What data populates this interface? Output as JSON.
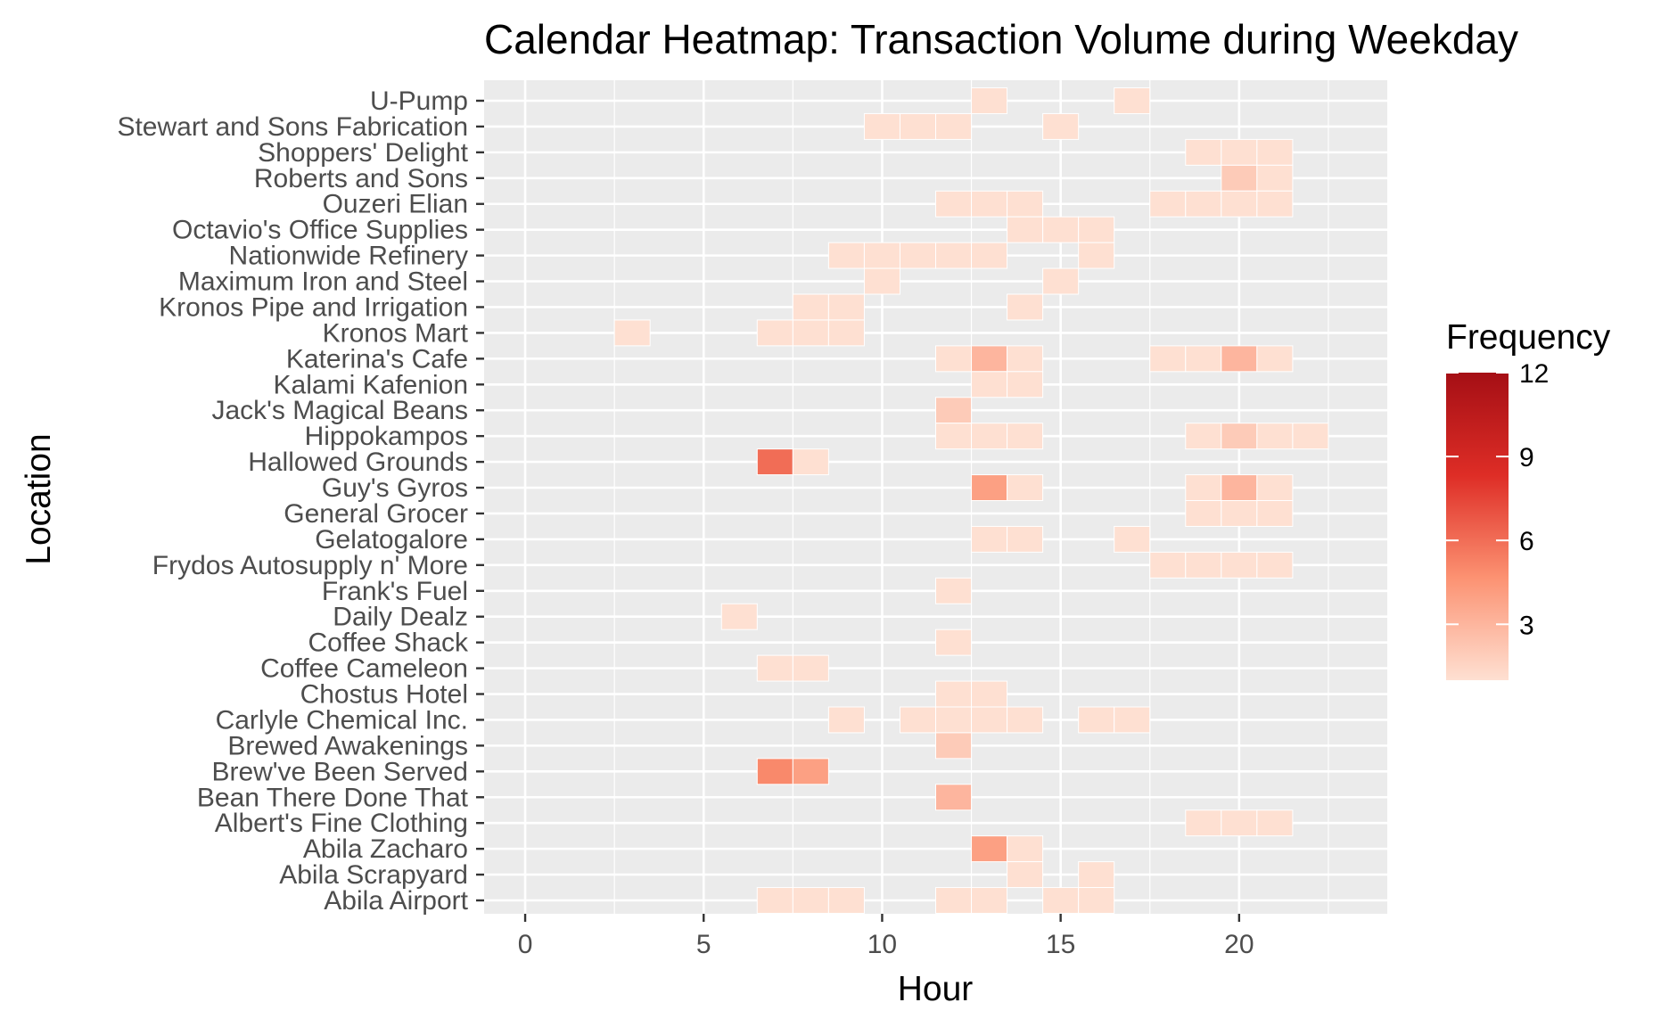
{
  "chart_data": {
    "type": "heatmap",
    "title": "Calendar Heatmap: Transaction Volume during Weekday",
    "xlabel": "Hour",
    "ylabel": "Location",
    "xlim": [
      -1.15,
      24.15
    ],
    "xticks": [
      0,
      5,
      10,
      15,
      20
    ],
    "grid": true,
    "legend": {
      "title": "Frequency",
      "position": "right",
      "range": [
        1,
        12
      ],
      "ticks": [
        3,
        6,
        9,
        12
      ],
      "colors": [
        "#fee0d2",
        "#fc9272",
        "#de2d26",
        "#a50f15"
      ]
    },
    "locations": [
      "Abila Airport",
      "Abila Scrapyard",
      "Abila Zacharo",
      "Albert's Fine Clothing",
      "Bean There Done That",
      "Brew've Been Served",
      "Brewed Awakenings",
      "Carlyle Chemical Inc.",
      "Chostus Hotel",
      "Coffee Cameleon",
      "Coffee Shack",
      "Daily Dealz",
      "Frank's Fuel",
      "Frydos Autosupply n' More",
      "Gelatogalore",
      "General Grocer",
      "Guy's Gyros",
      "Hallowed Grounds",
      "Hippokampos",
      "Jack's Magical Beans",
      "Kalami Kafenion",
      "Katerina's Cafe",
      "Kronos Mart",
      "Kronos Pipe and Irrigation",
      "Maximum Iron and Steel",
      "Nationwide Refinery",
      "Octavio's Office Supplies",
      "Ouzeri Elian",
      "Roberts and Sons",
      "Shoppers' Delight",
      "Stewart and Sons Fabrication",
      "U-Pump"
    ],
    "cells": [
      {
        "location": "U-Pump",
        "hour": 13,
        "value": 1
      },
      {
        "location": "U-Pump",
        "hour": 17,
        "value": 1
      },
      {
        "location": "Stewart and Sons Fabrication",
        "hour": 10,
        "value": 1
      },
      {
        "location": "Stewart and Sons Fabrication",
        "hour": 11,
        "value": 1
      },
      {
        "location": "Stewart and Sons Fabrication",
        "hour": 12,
        "value": 1
      },
      {
        "location": "Stewart and Sons Fabrication",
        "hour": 15,
        "value": 1
      },
      {
        "location": "Shoppers' Delight",
        "hour": 19,
        "value": 1
      },
      {
        "location": "Shoppers' Delight",
        "hour": 20,
        "value": 1
      },
      {
        "location": "Shoppers' Delight",
        "hour": 21,
        "value": 1
      },
      {
        "location": "Roberts and Sons",
        "hour": 20,
        "value": 2
      },
      {
        "location": "Roberts and Sons",
        "hour": 21,
        "value": 1
      },
      {
        "location": "Ouzeri Elian",
        "hour": 12,
        "value": 1
      },
      {
        "location": "Ouzeri Elian",
        "hour": 13,
        "value": 1
      },
      {
        "location": "Ouzeri Elian",
        "hour": 14,
        "value": 1
      },
      {
        "location": "Ouzeri Elian",
        "hour": 18,
        "value": 1
      },
      {
        "location": "Ouzeri Elian",
        "hour": 19,
        "value": 1
      },
      {
        "location": "Ouzeri Elian",
        "hour": 20,
        "value": 1
      },
      {
        "location": "Ouzeri Elian",
        "hour": 21,
        "value": 1
      },
      {
        "location": "Octavio's Office Supplies",
        "hour": 14,
        "value": 1
      },
      {
        "location": "Octavio's Office Supplies",
        "hour": 15,
        "value": 1
      },
      {
        "location": "Octavio's Office Supplies",
        "hour": 16,
        "value": 1
      },
      {
        "location": "Nationwide Refinery",
        "hour": 9,
        "value": 1
      },
      {
        "location": "Nationwide Refinery",
        "hour": 10,
        "value": 1
      },
      {
        "location": "Nationwide Refinery",
        "hour": 11,
        "value": 1
      },
      {
        "location": "Nationwide Refinery",
        "hour": 12,
        "value": 1
      },
      {
        "location": "Nationwide Refinery",
        "hour": 13,
        "value": 1
      },
      {
        "location": "Nationwide Refinery",
        "hour": 16,
        "value": 1
      },
      {
        "location": "Maximum Iron and Steel",
        "hour": 10,
        "value": 1
      },
      {
        "location": "Maximum Iron and Steel",
        "hour": 15,
        "value": 1
      },
      {
        "location": "Kronos Pipe and Irrigation",
        "hour": 8,
        "value": 1
      },
      {
        "location": "Kronos Pipe and Irrigation",
        "hour": 9,
        "value": 1
      },
      {
        "location": "Kronos Pipe and Irrigation",
        "hour": 14,
        "value": 1
      },
      {
        "location": "Kronos Mart",
        "hour": 3,
        "value": 1
      },
      {
        "location": "Kronos Mart",
        "hour": 7,
        "value": 1
      },
      {
        "location": "Kronos Mart",
        "hour": 8,
        "value": 1
      },
      {
        "location": "Kronos Mart",
        "hour": 9,
        "value": 1
      },
      {
        "location": "Katerina's Cafe",
        "hour": 12,
        "value": 1
      },
      {
        "location": "Katerina's Cafe",
        "hour": 13,
        "value": 3
      },
      {
        "location": "Katerina's Cafe",
        "hour": 14,
        "value": 1
      },
      {
        "location": "Katerina's Cafe",
        "hour": 18,
        "value": 1
      },
      {
        "location": "Katerina's Cafe",
        "hour": 19,
        "value": 1
      },
      {
        "location": "Katerina's Cafe",
        "hour": 20,
        "value": 3
      },
      {
        "location": "Katerina's Cafe",
        "hour": 21,
        "value": 1
      },
      {
        "location": "Kalami Kafenion",
        "hour": 13,
        "value": 1
      },
      {
        "location": "Kalami Kafenion",
        "hour": 14,
        "value": 1
      },
      {
        "location": "Jack's Magical Beans",
        "hour": 12,
        "value": 2
      },
      {
        "location": "Hippokampos",
        "hour": 12,
        "value": 1
      },
      {
        "location": "Hippokampos",
        "hour": 13,
        "value": 1
      },
      {
        "location": "Hippokampos",
        "hour": 14,
        "value": 1
      },
      {
        "location": "Hippokampos",
        "hour": 19,
        "value": 1
      },
      {
        "location": "Hippokampos",
        "hour": 20,
        "value": 2
      },
      {
        "location": "Hippokampos",
        "hour": 21,
        "value": 1
      },
      {
        "location": "Hippokampos",
        "hour": 22,
        "value": 1
      },
      {
        "location": "Hallowed Grounds",
        "hour": 7,
        "value": 6
      },
      {
        "location": "Hallowed Grounds",
        "hour": 8,
        "value": 1
      },
      {
        "location": "Guy's Gyros",
        "hour": 13,
        "value": 4
      },
      {
        "location": "Guy's Gyros",
        "hour": 14,
        "value": 1
      },
      {
        "location": "Guy's Gyros",
        "hour": 19,
        "value": 1
      },
      {
        "location": "Guy's Gyros",
        "hour": 20,
        "value": 3
      },
      {
        "location": "Guy's Gyros",
        "hour": 21,
        "value": 1
      },
      {
        "location": "General Grocer",
        "hour": 19,
        "value": 1
      },
      {
        "location": "General Grocer",
        "hour": 20,
        "value": 1
      },
      {
        "location": "General Grocer",
        "hour": 21,
        "value": 1
      },
      {
        "location": "Gelatogalore",
        "hour": 13,
        "value": 1
      },
      {
        "location": "Gelatogalore",
        "hour": 14,
        "value": 1
      },
      {
        "location": "Gelatogalore",
        "hour": 17,
        "value": 1
      },
      {
        "location": "Frydos Autosupply n' More",
        "hour": 18,
        "value": 1
      },
      {
        "location": "Frydos Autosupply n' More",
        "hour": 19,
        "value": 1
      },
      {
        "location": "Frydos Autosupply n' More",
        "hour": 20,
        "value": 1
      },
      {
        "location": "Frydos Autosupply n' More",
        "hour": 21,
        "value": 1
      },
      {
        "location": "Frank's Fuel",
        "hour": 12,
        "value": 1
      },
      {
        "location": "Daily Dealz",
        "hour": 6,
        "value": 1
      },
      {
        "location": "Coffee Shack",
        "hour": 12,
        "value": 1
      },
      {
        "location": "Coffee Cameleon",
        "hour": 7,
        "value": 1
      },
      {
        "location": "Coffee Cameleon",
        "hour": 8,
        "value": 1
      },
      {
        "location": "Chostus Hotel",
        "hour": 12,
        "value": 1
      },
      {
        "location": "Chostus Hotel",
        "hour": 13,
        "value": 1
      },
      {
        "location": "Carlyle Chemical Inc.",
        "hour": 9,
        "value": 1
      },
      {
        "location": "Carlyle Chemical Inc.",
        "hour": 11,
        "value": 1
      },
      {
        "location": "Carlyle Chemical Inc.",
        "hour": 12,
        "value": 1
      },
      {
        "location": "Carlyle Chemical Inc.",
        "hour": 13,
        "value": 1
      },
      {
        "location": "Carlyle Chemical Inc.",
        "hour": 14,
        "value": 1
      },
      {
        "location": "Carlyle Chemical Inc.",
        "hour": 16,
        "value": 1
      },
      {
        "location": "Carlyle Chemical Inc.",
        "hour": 17,
        "value": 1
      },
      {
        "location": "Brewed Awakenings",
        "hour": 12,
        "value": 2
      },
      {
        "location": "Brew've Been Served",
        "hour": 7,
        "value": 5
      },
      {
        "location": "Brew've Been Served",
        "hour": 8,
        "value": 4
      },
      {
        "location": "Bean There Done That",
        "hour": 12,
        "value": 3
      },
      {
        "location": "Albert's Fine Clothing",
        "hour": 19,
        "value": 1
      },
      {
        "location": "Albert's Fine Clothing",
        "hour": 20,
        "value": 1
      },
      {
        "location": "Albert's Fine Clothing",
        "hour": 21,
        "value": 1
      },
      {
        "location": "Abila Zacharo",
        "hour": 13,
        "value": 4
      },
      {
        "location": "Abila Zacharo",
        "hour": 14,
        "value": 1
      },
      {
        "location": "Abila Scrapyard",
        "hour": 14,
        "value": 1
      },
      {
        "location": "Abila Scrapyard",
        "hour": 16,
        "value": 1
      },
      {
        "location": "Abila Airport",
        "hour": 7,
        "value": 1
      },
      {
        "location": "Abila Airport",
        "hour": 8,
        "value": 1
      },
      {
        "location": "Abila Airport",
        "hour": 9,
        "value": 1
      },
      {
        "location": "Abila Airport",
        "hour": 12,
        "value": 1
      },
      {
        "location": "Abila Airport",
        "hour": 13,
        "value": 1
      },
      {
        "location": "Abila Airport",
        "hour": 15,
        "value": 1
      },
      {
        "location": "Abila Airport",
        "hour": 16,
        "value": 1
      }
    ]
  }
}
